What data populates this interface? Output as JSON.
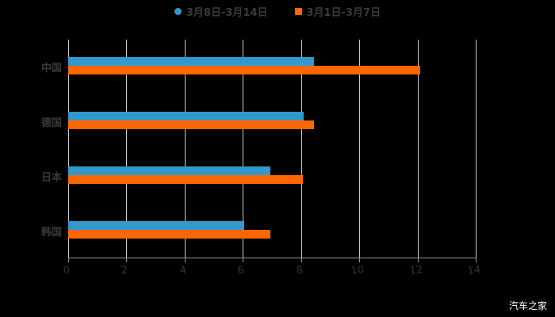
{
  "chart_data": {
    "type": "bar",
    "orientation": "horizontal",
    "title": "",
    "xlabel": "",
    "ylabel": "",
    "categories": [
      "中国",
      "德国",
      "日本",
      "韩国"
    ],
    "series": [
      {
        "name": "3月8日-3月14日",
        "color": "#3399cc",
        "values": [
          8.44,
          8.08,
          6.95,
          6.05
        ]
      },
      {
        "name": "3月1日-3月7日",
        "color": "#ff6600",
        "values": [
          12.1,
          8.44,
          8.07,
          6.95
        ]
      }
    ],
    "xlim": [
      0,
      14
    ],
    "xticks": [
      "0",
      "2",
      "4",
      "6",
      "8",
      "10",
      "12",
      "14"
    ],
    "grid": true,
    "legend_position": "top"
  },
  "legend": {
    "series1": "3月8日-3月14日",
    "series2": "3月1日-3月7日"
  },
  "watermark": "汽车之家"
}
